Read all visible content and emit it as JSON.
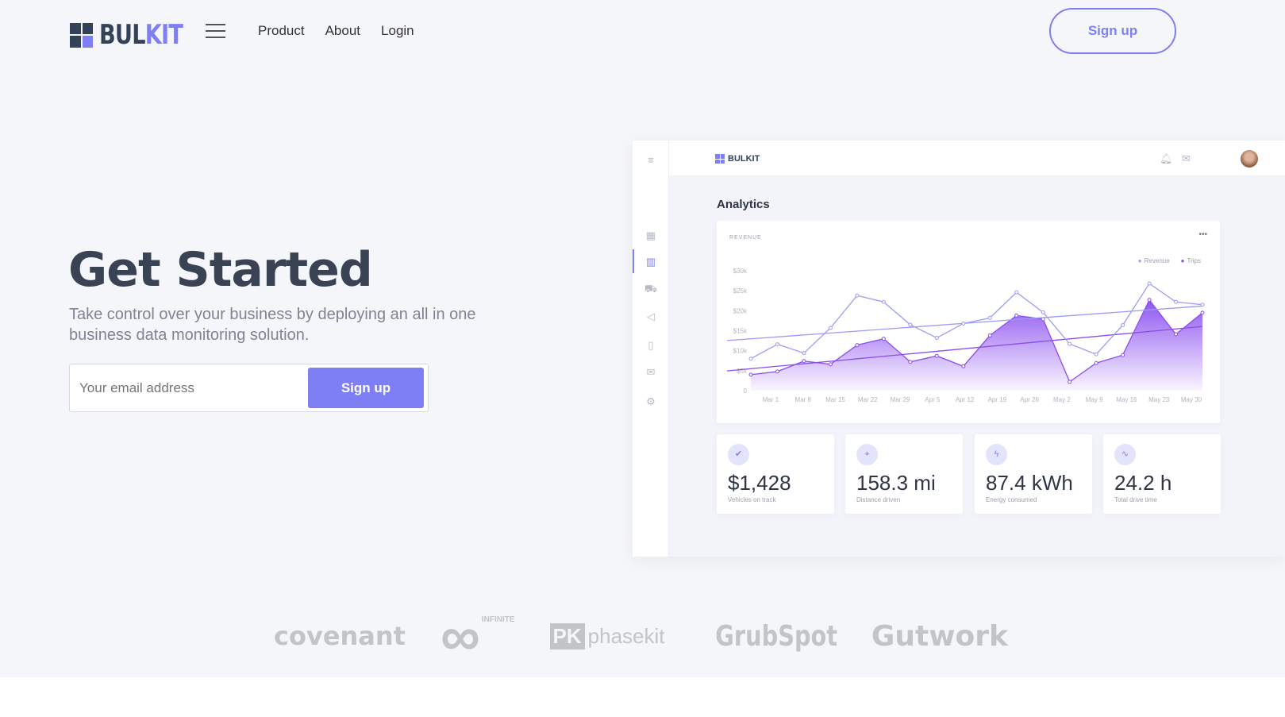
{
  "header": {
    "logo_a": "BUL",
    "logo_b": "KIT",
    "nav": [
      "Product",
      "About",
      "Login"
    ],
    "signup": "Sign up"
  },
  "hero": {
    "title": "Get Started",
    "subtitle": "Take control over your business by deploying an all in one business data monitoring solution.",
    "email_placeholder": "Your email address",
    "signup": "Sign up"
  },
  "dashboard": {
    "logo": "BULKIT",
    "title": "Analytics",
    "sidebar_icons": [
      "menu-icon",
      "grid-icon",
      "bar-chart-icon",
      "car-icon",
      "megaphone-icon",
      "map-icon",
      "mail-icon",
      "gear-icon"
    ],
    "top_icons": [
      "bell-icon",
      "mail-icon",
      "avatar"
    ],
    "stats": [
      {
        "value": "$1,428",
        "label": "Vehicles on track",
        "icon": "check-icon"
      },
      {
        "value": "158.3 mi",
        "label": "Distance driven",
        "icon": "map-pin-icon"
      },
      {
        "value": "87.4 kWh",
        "label": "Energy consumed",
        "icon": "bolt-icon"
      },
      {
        "value": "24.2 h",
        "label": "Total drive time",
        "icon": "activity-icon"
      }
    ]
  },
  "chart_data": {
    "type": "line",
    "title": "REVENUE",
    "legend_placement": "top-right",
    "ylim": [
      0,
      30000
    ],
    "yticks": [
      "0",
      "$5k",
      "$10k",
      "$15k",
      "$20k",
      "$25k",
      "$30k"
    ],
    "xticks": [
      "Mar 1",
      "Mar 8",
      "Mar 15",
      "Mar 22",
      "Mar 29",
      "Apr 5",
      "Apr 12",
      "Apr 19",
      "Apr 26",
      "May 2",
      "May 9",
      "May 16",
      "May 23",
      "May 30"
    ],
    "series": [
      {
        "name": "Revenue",
        "color": "#9b9bf7",
        "values": [
          8000,
          11600,
          9400,
          15700,
          23800,
          22200,
          16500,
          13200,
          16800,
          18200,
          24600,
          19600,
          11700,
          9100,
          16400,
          26800,
          22200,
          21500
        ],
        "trendline": true
      },
      {
        "name": "Trips",
        "color": "#8a4cf0",
        "area": true,
        "values": [
          4000,
          4800,
          7400,
          6600,
          11400,
          13000,
          7200,
          8700,
          6100,
          13800,
          18800,
          17900,
          2200,
          6900,
          8900,
          22700,
          14100,
          19500
        ],
        "trendline": true
      }
    ]
  },
  "partners": [
    "covenant",
    "INFINITE",
    "phasekit",
    "GrubSpot",
    "Gutwork"
  ],
  "colors": {
    "accent": "#7e7ef5",
    "background": "#f5f6fa"
  }
}
